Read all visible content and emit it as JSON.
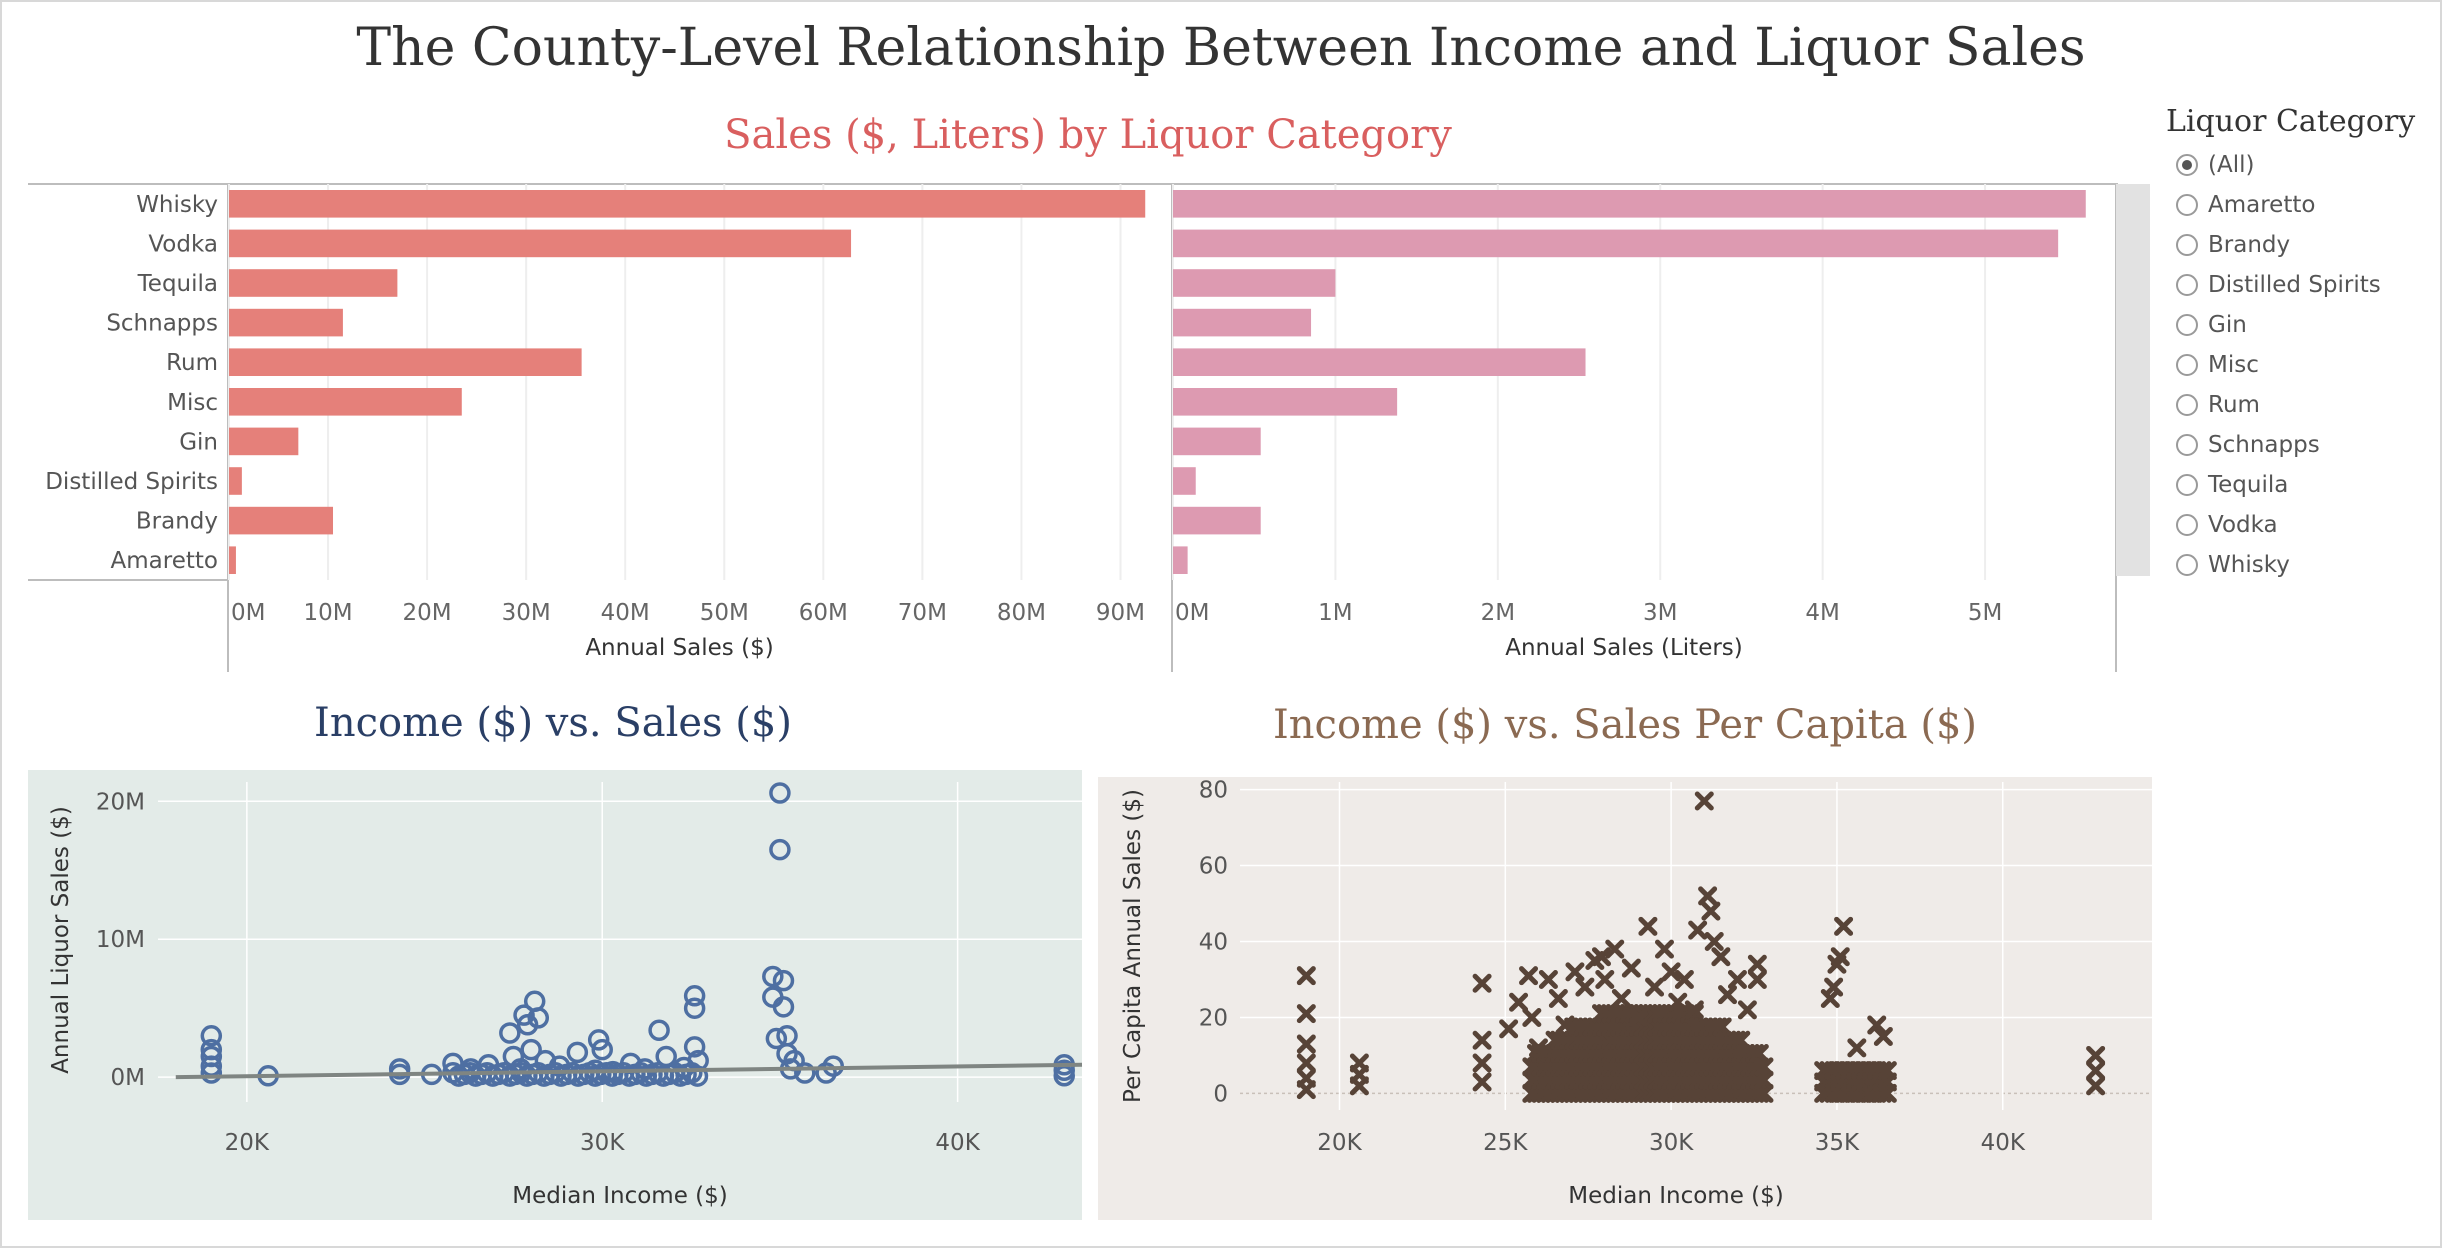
{
  "title": "The County-Level Relationship Between Income and Liquor Sales",
  "bars_title": "Sales ($, Liters) by Liquor Category",
  "scatter1_title": "Income ($) vs. Sales ($)",
  "scatter2_title": "Income ($) vs. Sales Per Capita ($)",
  "legend": {
    "title": "Liquor Category",
    "options": [
      "(All)",
      "Amaretto",
      "Brandy",
      "Distilled Spirits",
      "Gin",
      "Misc",
      "Rum",
      "Schnapps",
      "Tequila",
      "Vodka",
      "Whisky"
    ],
    "selected": "(All)"
  },
  "colors": {
    "dollars": "#e5807a",
    "liters": "#dd9ab1",
    "scatter1": "#4e6fa2",
    "scatter2": "#574337",
    "trend": "#7f8582",
    "scatter1_bg": "#e3ebe8",
    "scatter2_bg": "#efebe8"
  },
  "chart_data": [
    {
      "type": "bar",
      "orientation": "horizontal",
      "categories": [
        "Whisky",
        "Vodka",
        "Tequila",
        "Schnapps",
        "Rum",
        "Misc",
        "Gin",
        "Distilled Spirits",
        "Brandy",
        "Amaretto"
      ],
      "values": [
        92.5,
        62.8,
        17.0,
        11.5,
        35.6,
        23.5,
        7.0,
        1.3,
        10.5,
        0.7
      ],
      "xlabel": "Annual Sales ($)",
      "xticks": [
        "0M",
        "10M",
        "20M",
        "30M",
        "40M",
        "50M",
        "60M",
        "70M",
        "80M",
        "90M"
      ],
      "xlim": [
        0,
        95
      ],
      "unit": "M"
    },
    {
      "type": "bar",
      "orientation": "horizontal",
      "categories": [
        "Whisky",
        "Vodka",
        "Tequila",
        "Schnapps",
        "Rum",
        "Misc",
        "Gin",
        "Distilled Spirits",
        "Brandy",
        "Amaretto"
      ],
      "values": [
        5.62,
        5.45,
        1.0,
        0.85,
        2.54,
        1.38,
        0.54,
        0.14,
        0.54,
        0.09
      ],
      "xlabel": "Annual Sales (Liters)",
      "xticks": [
        "0M",
        "1M",
        "2M",
        "3M",
        "4M",
        "5M"
      ],
      "xlim": [
        0,
        5.8
      ],
      "unit": "M"
    },
    {
      "type": "scatter",
      "title": "Income ($) vs. Sales ($)",
      "xlabel": "Median Income ($)",
      "ylabel": "Annual Liquor Sales ($)",
      "xticks": [
        "20K",
        "30K",
        "40K"
      ],
      "yticks": [
        "0M",
        "10M",
        "20M"
      ],
      "xlim": [
        17500,
        43500
      ],
      "ylim": [
        -1.8,
        21.4
      ],
      "trendline": [
        [
          18000,
          0.0
        ],
        [
          43500,
          0.9
        ]
      ],
      "points": [
        [
          19000,
          3.0
        ],
        [
          19000,
          2.0
        ],
        [
          19000,
          1.5
        ],
        [
          19000,
          0.8
        ],
        [
          19000,
          0.3
        ],
        [
          20600,
          0.1
        ],
        [
          24300,
          0.6
        ],
        [
          24300,
          0.2
        ],
        [
          25200,
          0.2
        ],
        [
          25800,
          1.0
        ],
        [
          26300,
          0.6
        ],
        [
          26800,
          0.9
        ],
        [
          27400,
          3.2
        ],
        [
          27500,
          1.5
        ],
        [
          27700,
          0.6
        ],
        [
          27800,
          4.5
        ],
        [
          27900,
          3.8
        ],
        [
          28000,
          2.0
        ],
        [
          28100,
          5.5
        ],
        [
          28200,
          4.3
        ],
        [
          28400,
          1.2
        ],
        [
          28800,
          0.8
        ],
        [
          29300,
          1.8
        ],
        [
          29800,
          0.5
        ],
        [
          29900,
          2.7
        ],
        [
          30000,
          2.0
        ],
        [
          30300,
          0.4
        ],
        [
          30800,
          1.0
        ],
        [
          31200,
          0.6
        ],
        [
          31600,
          3.4
        ],
        [
          31800,
          1.5
        ],
        [
          32300,
          0.7
        ],
        [
          32600,
          5.9
        ],
        [
          32600,
          5.0
        ],
        [
          32600,
          2.2
        ],
        [
          32700,
          1.2
        ],
        [
          34800,
          7.3
        ],
        [
          34800,
          5.8
        ],
        [
          34900,
          2.8
        ],
        [
          35000,
          20.6
        ],
        [
          35000,
          16.5
        ],
        [
          35100,
          7.0
        ],
        [
          35100,
          5.1
        ],
        [
          35200,
          3.0
        ],
        [
          35200,
          1.7
        ],
        [
          35300,
          0.6
        ],
        [
          35400,
          1.2
        ],
        [
          35700,
          0.3
        ],
        [
          36300,
          0.3
        ],
        [
          36500,
          0.8
        ],
        [
          43000,
          0.9
        ],
        [
          43000,
          0.5
        ],
        [
          43000,
          0.1
        ]
      ]
    },
    {
      "type": "scatter",
      "title": "Income ($) vs. Sales Per Capita ($)",
      "xlabel": "Median Income ($)",
      "ylabel": "Per Capita Annual Sales ($)",
      "xticks": [
        "20K",
        "25K",
        "30K",
        "35K",
        "40K"
      ],
      "yticks": [
        "0",
        "20",
        "40",
        "60",
        "80"
      ],
      "xlim": [
        17000,
        44500
      ],
      "ylim": [
        -7,
        82
      ],
      "points": [
        [
          19000,
          31
        ],
        [
          19000,
          21
        ],
        [
          19000,
          13
        ],
        [
          19000,
          8
        ],
        [
          19000,
          4
        ],
        [
          19000,
          1
        ],
        [
          20600,
          8
        ],
        [
          20600,
          5
        ],
        [
          20600,
          2
        ],
        [
          24300,
          29
        ],
        [
          24300,
          14
        ],
        [
          24300,
          8
        ],
        [
          24300,
          3
        ],
        [
          25100,
          17
        ],
        [
          25400,
          24
        ],
        [
          25700,
          31
        ],
        [
          25800,
          20
        ],
        [
          26000,
          12
        ],
        [
          26300,
          30
        ],
        [
          26600,
          25
        ],
        [
          26800,
          18
        ],
        [
          27100,
          32
        ],
        [
          27400,
          28
        ],
        [
          27700,
          35
        ],
        [
          27900,
          36
        ],
        [
          28000,
          30
        ],
        [
          28300,
          38
        ],
        [
          28500,
          25
        ],
        [
          28800,
          33
        ],
        [
          29000,
          20
        ],
        [
          29300,
          44
        ],
        [
          29500,
          28
        ],
        [
          29800,
          38
        ],
        [
          30000,
          32
        ],
        [
          30200,
          24
        ],
        [
          30400,
          30
        ],
        [
          30700,
          22
        ],
        [
          30800,
          43
        ],
        [
          31000,
          77
        ],
        [
          31100,
          52
        ],
        [
          31200,
          48
        ],
        [
          31300,
          40
        ],
        [
          31500,
          36
        ],
        [
          31700,
          26
        ],
        [
          32000,
          30
        ],
        [
          32300,
          22
        ],
        [
          32600,
          34
        ],
        [
          32600,
          30
        ],
        [
          34800,
          25
        ],
        [
          34900,
          28
        ],
        [
          35000,
          34
        ],
        [
          35100,
          36
        ],
        [
          35200,
          44
        ],
        [
          35600,
          12
        ],
        [
          36200,
          18
        ],
        [
          36400,
          15
        ],
        [
          42800,
          10
        ],
        [
          42800,
          6
        ],
        [
          42800,
          2
        ]
      ]
    }
  ]
}
